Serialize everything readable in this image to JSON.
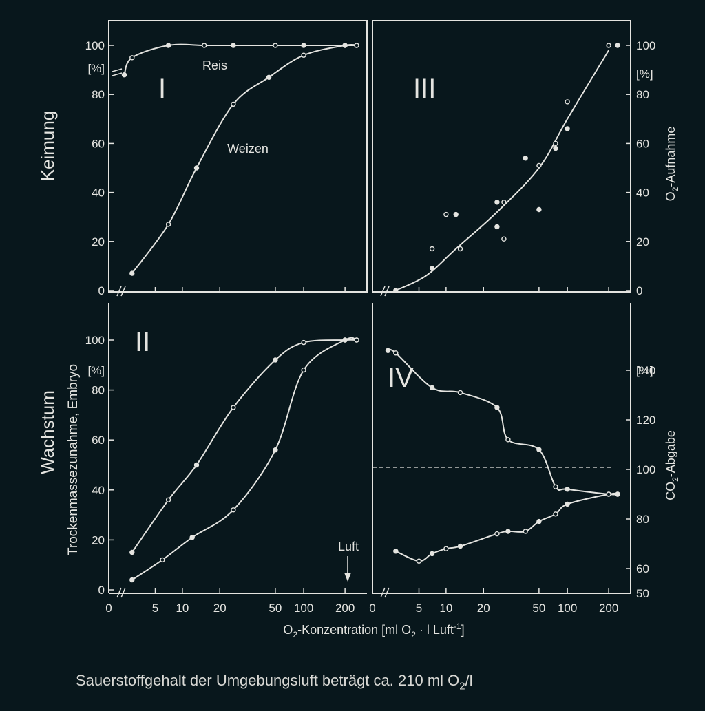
{
  "row_labels": {
    "top": "Keimung",
    "bottom": "Wachstum"
  },
  "left_axis_title": "Trockenmassezunahme, Embryo",
  "right_axis_titles": {
    "top": {
      "main": "O",
      "sub": "2",
      "rest": "-Aufnahme"
    },
    "bottom": {
      "main": "CO",
      "sub": "2",
      "rest": "-Abgabe"
    }
  },
  "x_axis_title": {
    "prefix": "O",
    "sub1": "2",
    "mid": "-Konzentration [ml O",
    "sub2": "2",
    "rest": " · l Luft",
    "sup": "-1",
    "end": "]"
  },
  "caption": {
    "text": "Sauerstoffgehalt der Umgebungsluft beträgt ca. 210 ml O",
    "sub": "2",
    "end": "/l"
  },
  "luft_label": "Luft",
  "colors": {
    "background": "#08171c",
    "ink": "#e4e4e0"
  },
  "chart_data": [
    {
      "panel": "I",
      "type": "line",
      "x_scale": "log-like (0 then 5–200)",
      "x_ticks": [
        "0",
        "5",
        "10",
        "20",
        "50",
        "100",
        "200"
      ],
      "y_ticks": [
        "0",
        "20",
        "40",
        "60",
        "80",
        "100"
      ],
      "y_unit": "[%]",
      "ylim": [
        0,
        100
      ],
      "series": [
        {
          "name": "Reis",
          "points": [
            [
              1,
              88
            ],
            [
              2,
              95
            ],
            [
              7,
              100
            ],
            [
              15,
              100
            ],
            [
              25,
              100
            ],
            [
              50,
              100
            ],
            [
              100,
              100
            ],
            [
              200,
              100
            ],
            [
              240,
              100
            ]
          ]
        },
        {
          "name": "Weizen",
          "points": [
            [
              2,
              7
            ],
            [
              7,
              27
            ],
            [
              13,
              50
            ],
            [
              25,
              76
            ],
            [
              45,
              87
            ],
            [
              100,
              96
            ],
            [
              200,
              100
            ],
            [
              240,
              100
            ]
          ]
        }
      ]
    },
    {
      "panel": "II",
      "type": "line",
      "x_scale": "log-like (0 then 5–200)",
      "x_ticks": [
        "0",
        "5",
        "10",
        "20",
        "50",
        "100",
        "200"
      ],
      "y_ticks": [
        "0",
        "20",
        "40",
        "60",
        "80",
        "100"
      ],
      "y_unit": "[%]",
      "ylim": [
        0,
        100
      ],
      "series": [
        {
          "points": [
            [
              2,
              15
            ],
            [
              7,
              36
            ],
            [
              13,
              50
            ],
            [
              25,
              73
            ],
            [
              50,
              92
            ],
            [
              100,
              99
            ],
            [
              200,
              100
            ],
            [
              240,
              100
            ]
          ]
        },
        {
          "points": [
            [
              2,
              4
            ],
            [
              6,
              12
            ],
            [
              12,
              21
            ],
            [
              25,
              32
            ],
            [
              50,
              56
            ],
            [
              100,
              88
            ],
            [
              200,
              100
            ],
            [
              240,
              100
            ]
          ]
        }
      ],
      "annotation": "Luft"
    },
    {
      "panel": "III",
      "type": "scatter",
      "x_ticks": [
        "0",
        "5",
        "10",
        "20",
        "50",
        "100",
        "200"
      ],
      "y_ticks": [
        "0",
        "20",
        "40",
        "60",
        "80",
        "100"
      ],
      "y_unit": "[%]",
      "ylim": [
        0,
        100
      ],
      "series": [
        {
          "points": [
            [
              2,
              0
            ],
            [
              7,
              17
            ],
            [
              7,
              9
            ],
            [
              10,
              31
            ],
            [
              12,
              31
            ],
            [
              13,
              17
            ],
            [
              25,
              36
            ],
            [
              28,
              36
            ],
            [
              25,
              26
            ],
            [
              28,
              21
            ],
            [
              40,
              54
            ],
            [
              50,
              51
            ],
            [
              50,
              33
            ],
            [
              75,
              60
            ],
            [
              75,
              58
            ],
            [
              100,
              77
            ],
            [
              100,
              66
            ],
            [
              200,
              100
            ],
            [
              230,
              100
            ]
          ]
        }
      ]
    },
    {
      "panel": "IV",
      "type": "line",
      "x_ticks": [
        "0",
        "5",
        "10",
        "20",
        "50",
        "100",
        "200"
      ],
      "y_ticks": [
        "50",
        "60",
        "80",
        "100",
        "120",
        "140"
      ],
      "y_unit": "[%]",
      "ylim": [
        50,
        150
      ],
      "series": [
        {
          "points": [
            [
              1,
              148
            ],
            [
              2,
              147
            ],
            [
              7,
              133
            ],
            [
              13,
              131
            ],
            [
              25,
              125
            ],
            [
              30,
              112
            ],
            [
              50,
              108
            ],
            [
              75,
              93
            ],
            [
              100,
              92
            ],
            [
              200,
              90
            ],
            [
              230,
              90
            ]
          ]
        },
        {
          "points": [
            [
              2,
              67
            ],
            [
              5,
              63
            ],
            [
              7,
              66
            ],
            [
              10,
              68
            ],
            [
              13,
              69
            ],
            [
              25,
              74
            ],
            [
              30,
              75
            ],
            [
              40,
              75
            ],
            [
              50,
              79
            ],
            [
              75,
              82
            ],
            [
              100,
              86
            ],
            [
              200,
              90
            ],
            [
              230,
              90
            ]
          ]
        }
      ],
      "reference_line": 90
    }
  ]
}
